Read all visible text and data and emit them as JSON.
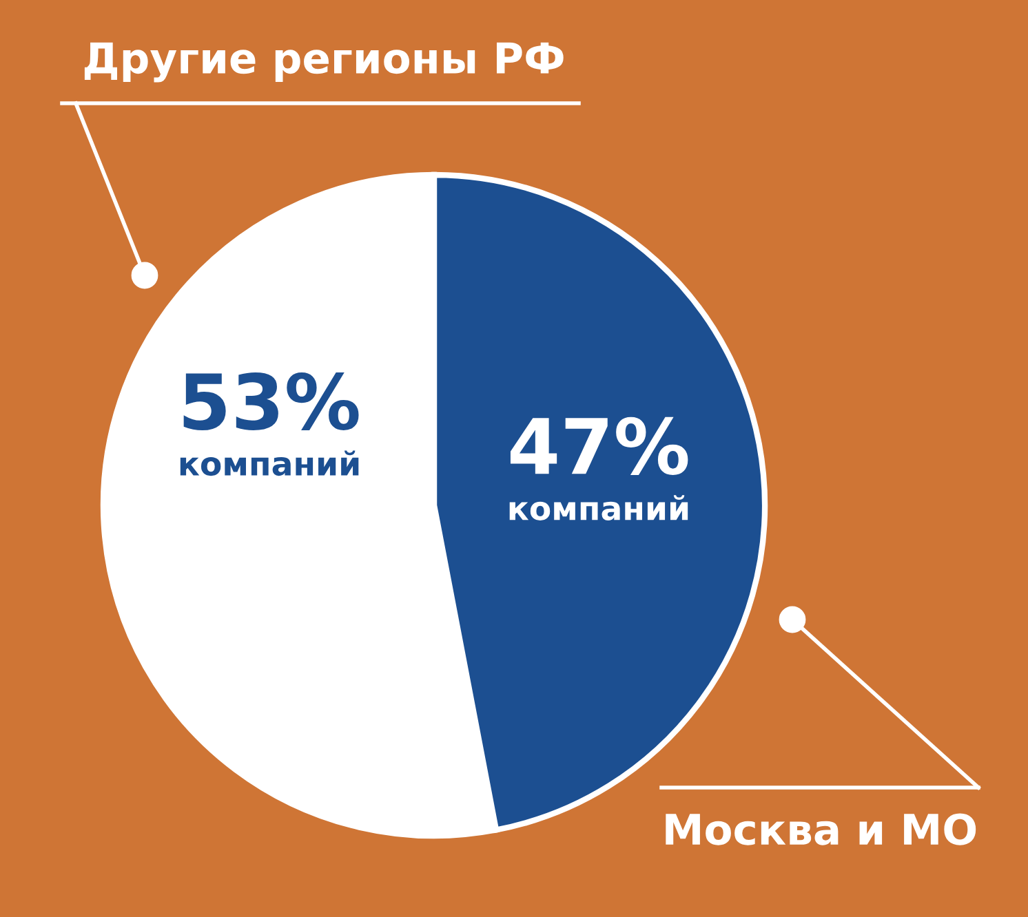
{
  "chart_data": {
    "type": "pie",
    "categories": [
      "Другие регионы РФ",
      "Москва и МО"
    ],
    "values": [
      53,
      47
    ],
    "colors": [
      "#ffffff",
      "#1c4f91"
    ],
    "value_labels": [
      "53%\nкомпаний",
      "47%\nкомпаний"
    ]
  }
}
